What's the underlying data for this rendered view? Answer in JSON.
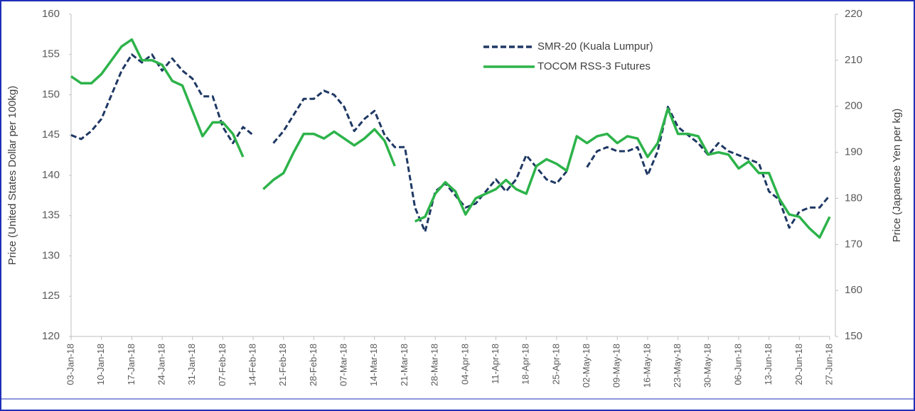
{
  "chart_data": {
    "type": "line",
    "y_axis_label": "Price (United States Dollar per 100kg)",
    "y2_axis_label": "Price (Japanese Yen per kg)",
    "categories": [
      "03-Jan-18",
      null,
      null,
      "10-Jan-18",
      null,
      null,
      "17-Jan-18",
      null,
      null,
      "24-Jan-18",
      null,
      null,
      "31-Jan-18",
      null,
      null,
      "07-Feb-18",
      null,
      null,
      "14-Feb-18",
      null,
      null,
      "21-Feb-18",
      null,
      null,
      "28-Feb-18",
      null,
      null,
      "07-Mar-18",
      null,
      null,
      "14-Mar-18",
      null,
      null,
      "21-Mar-18",
      null,
      null,
      "28-Mar-18",
      null,
      null,
      "04-Apr-18",
      null,
      null,
      "11-Apr-18",
      null,
      null,
      "18-Apr-18",
      null,
      null,
      "25-Apr-18",
      null,
      null,
      "02-May-18",
      null,
      null,
      "09-May-18",
      null,
      null,
      "16-May-18",
      null,
      null,
      "23-May-18",
      null,
      null,
      "30-May-18",
      null,
      null,
      "06-Jun-18",
      null,
      null,
      "13-Jun-18",
      null,
      null,
      "20-Jun-18",
      null,
      null,
      "27-Jun-18"
    ],
    "series": [
      {
        "name": "SMR-20 (Kuala Lumpur)",
        "color": "#1f3864",
        "dash": true,
        "axis": "y",
        "values": [
          145,
          144.5,
          145.5,
          147,
          150,
          153,
          155,
          154,
          155,
          153,
          154.5,
          153,
          152,
          149.8,
          149.8,
          146,
          144,
          146,
          145,
          null,
          144,
          145.5,
          147.5,
          149.5,
          149.5,
          150.5,
          150,
          148.5,
          145.5,
          147,
          148,
          145,
          143.5,
          143.5,
          136,
          133,
          138,
          139,
          137.5,
          136,
          136.5,
          138,
          139.5,
          138,
          139.5,
          142.5,
          141,
          139.5,
          139,
          140.5,
          null,
          141,
          143,
          143.5,
          143,
          143,
          143.5,
          140,
          143,
          148.5,
          146,
          145,
          144,
          142.5,
          144,
          143,
          142.5,
          142,
          141.5,
          138,
          137,
          133.5,
          135.5,
          136,
          136,
          137.5
        ]
      },
      {
        "name": "TOCOM RSS-3 Futures",
        "color": "#2db34a",
        "dash": false,
        "axis": "y2",
        "values": [
          206.5,
          205,
          205,
          207,
          210,
          213,
          214.5,
          210,
          210,
          209,
          205.5,
          204.5,
          199,
          193.5,
          196.5,
          196.5,
          194,
          189,
          null,
          182,
          184,
          185.5,
          190,
          194,
          194,
          193,
          194.5,
          193,
          191.5,
          193,
          195,
          192.5,
          187,
          null,
          175,
          176,
          181,
          183.5,
          181.5,
          176.5,
          180,
          181,
          182,
          184,
          182,
          181,
          187,
          188.5,
          187.5,
          186,
          193.5,
          192,
          193.5,
          194,
          192,
          193.5,
          193,
          189,
          192,
          199.5,
          194,
          194,
          193.5,
          189.5,
          190,
          189.5,
          186.5,
          188,
          185.5,
          185.5,
          180,
          176.5,
          176,
          173.5,
          171.5,
          176
        ]
      }
    ],
    "ylim": [
      120,
      160
    ],
    "yticks": [
      120,
      125,
      130,
      135,
      140,
      145,
      150,
      155,
      160
    ],
    "y2lim": [
      150,
      220
    ],
    "y2ticks": [
      150,
      160,
      170,
      180,
      190,
      200,
      210,
      220
    ],
    "legend": "top-right"
  }
}
